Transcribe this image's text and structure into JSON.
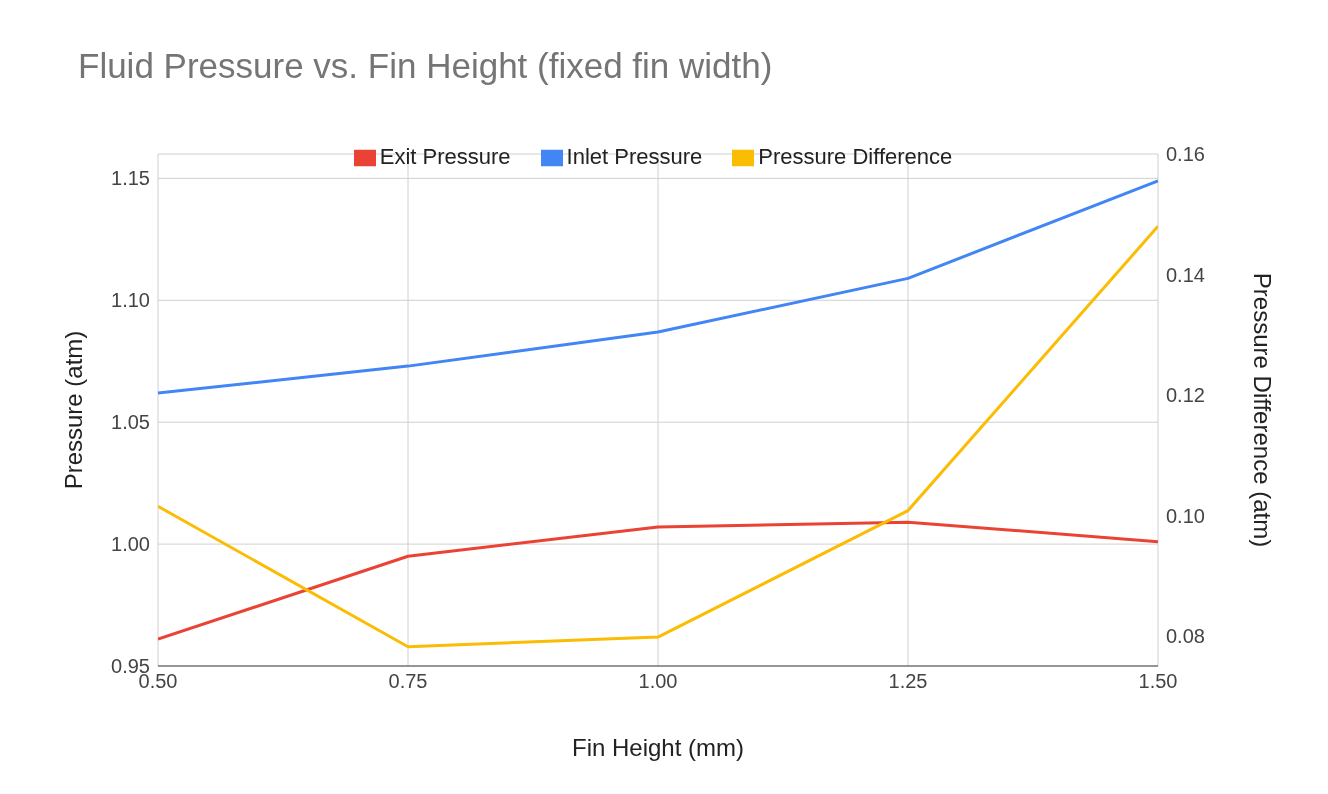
{
  "chart_data": {
    "type": "line",
    "title": "Fluid Pressure vs. Fin Height (fixed fin width)",
    "xlabel": "Fin Height (mm)",
    "ylabel": "Pressure (atm)",
    "y2label": "Pressure Difference (atm)",
    "x": [
      0.5,
      0.75,
      1.0,
      1.25,
      1.5
    ],
    "series": [
      {
        "name": "Inlet Pressure",
        "color": "#4285f4",
        "values": [
          1.062,
          1.073,
          1.087,
          1.109,
          1.149
        ]
      },
      {
        "name": "Exit Pressure",
        "color": "#ea4335",
        "values": [
          0.961,
          0.995,
          1.007,
          1.009,
          1.001
        ]
      },
      {
        "name": "Pressure Difference",
        "color": "#fbbc04",
        "axis": "y2",
        "values": [
          0.1015,
          0.0782,
          0.0798,
          0.1008,
          0.148
        ]
      }
    ],
    "xlim": [
      0.5,
      1.5
    ],
    "xticks": [
      {
        "value": 0.5,
        "label": "0.50"
      },
      {
        "value": 0.75,
        "label": "0.75"
      },
      {
        "value": 1.0,
        "label": "1.00"
      },
      {
        "value": 1.25,
        "label": "1.25"
      },
      {
        "value": 1.5,
        "label": "1.50"
      }
    ],
    "ylim": [
      0.95,
      1.16
    ],
    "yticks": [
      {
        "value": 0.95,
        "label": "0.95"
      },
      {
        "value": 1.0,
        "label": "1.00"
      },
      {
        "value": 1.05,
        "label": "1.05"
      },
      {
        "value": 1.1,
        "label": "1.10"
      },
      {
        "value": 1.15,
        "label": "1.15"
      }
    ],
    "y2lim": [
      0.075,
      0.16
    ],
    "y2ticks": [
      {
        "value": 0.08,
        "label": "0.08"
      },
      {
        "value": 0.1,
        "label": "0.10"
      },
      {
        "value": 0.12,
        "label": "0.12"
      },
      {
        "value": 0.14,
        "label": "0.14"
      },
      {
        "value": 0.16,
        "label": "0.16"
      }
    ],
    "grid": true,
    "legend": "top",
    "marker": "none",
    "line_style": "solid"
  }
}
